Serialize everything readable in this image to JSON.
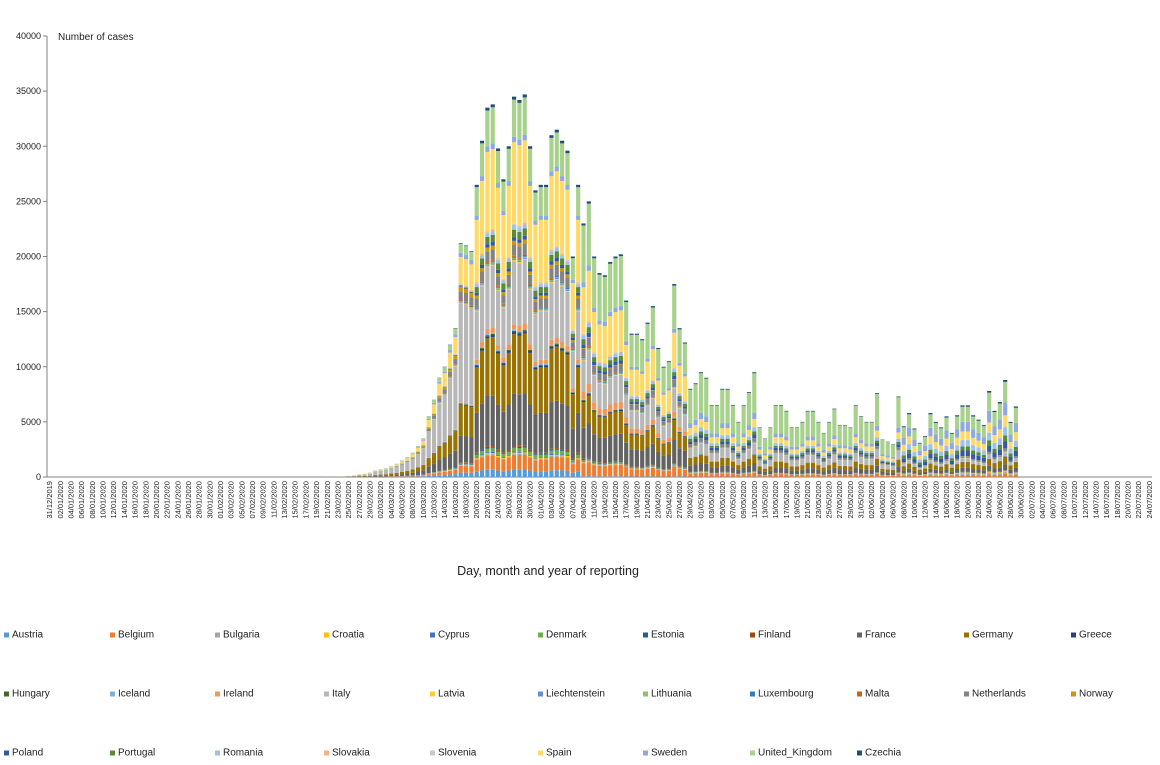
{
  "chart_data": {
    "type": "bar",
    "stacked": true,
    "ylabel": "Number of cases",
    "xlabel": "Day, month and year of reporting",
    "ylim": [
      0,
      40000
    ],
    "yticks": [
      0,
      5000,
      10000,
      15000,
      20000,
      25000,
      30000,
      35000,
      40000
    ],
    "start_date": "2019-12-31",
    "x_tick_labels": [
      "31/12/2019",
      "02/01/2020",
      "04/01/2020",
      "06/01/2020",
      "08/01/2020",
      "10/01/2020",
      "12/01/2020",
      "14/01/2020",
      "16/01/2020",
      "18/01/2020",
      "20/01/2020",
      "22/01/2020",
      "24/01/2020",
      "26/01/2020",
      "28/01/2020",
      "30/01/2020",
      "01/02/2020",
      "03/02/2020",
      "05/02/2020",
      "07/02/2020",
      "09/02/2020",
      "11/02/2020",
      "13/02/2020",
      "15/02/2020",
      "17/02/2020",
      "19/02/2020",
      "21/02/2020",
      "23/02/2020",
      "25/02/2020",
      "27/02/2020",
      "29/02/2020",
      "02/03/2020",
      "04/03/2020",
      "06/03/2020",
      "08/03/2020",
      "10/03/2020",
      "12/03/2020",
      "14/03/2020",
      "16/03/2020",
      "18/03/2020",
      "20/03/2020",
      "22/03/2020",
      "24/03/2020",
      "26/03/2020",
      "28/03/2020",
      "30/03/2020",
      "01/04/2020",
      "03/04/2020",
      "05/04/2020",
      "07/04/2020",
      "09/04/2020",
      "11/04/2020",
      "13/04/2020",
      "15/04/2020",
      "17/04/2020",
      "19/04/2020",
      "21/04/2020",
      "23/04/2020",
      "25/04/2020",
      "27/04/2020",
      "29/04/2020",
      "01/05/2020",
      "03/05/2020",
      "05/05/2020",
      "07/05/2020",
      "09/05/2020",
      "11/05/2020",
      "13/05/2020",
      "15/05/2020",
      "17/05/2020",
      "19/05/2020",
      "21/05/2020",
      "23/05/2020",
      "25/05/2020",
      "27/05/2020",
      "29/05/2020",
      "31/05/2020",
      "02/06/2020",
      "04/06/2020",
      "06/06/2020",
      "08/06/2020",
      "10/06/2020",
      "12/06/2020",
      "14/06/2020",
      "16/06/2020",
      "18/06/2020",
      "20/06/2020",
      "22/06/2020",
      "24/06/2020",
      "26/06/2020",
      "28/06/2020",
      "30/06/2020",
      "02/07/2020",
      "04/07/2020",
      "06/07/2020",
      "08/07/2020",
      "10/07/2020",
      "12/07/2020",
      "14/07/2020",
      "16/07/2020",
      "18/07/2020",
      "20/07/2020",
      "22/07/2020",
      "24/07/2020"
    ],
    "daily_totals_start_2020_02_21": [
      20,
      15,
      30,
      60,
      100,
      150,
      250,
      300,
      400,
      600,
      700,
      800,
      1000,
      1200,
      1500,
      1800,
      2200,
      2800,
      3500,
      5500,
      7000,
      9000,
      10000,
      12000,
      13500,
      21200,
      21000,
      20500,
      26500,
      30500,
      33500,
      33800,
      29800,
      27000,
      30000,
      34500,
      34200,
      34700,
      30000,
      26000,
      26500,
      26500,
      31000,
      31500,
      30500,
      29600,
      20000,
      26500,
      23000,
      25000,
      20000,
      18500,
      18300,
      19500,
      20000,
      20200,
      16000,
      13000,
      13000,
      12500,
      14000,
      15500,
      11700,
      10000,
      10500,
      17500,
      13500,
      12200,
      8000,
      8500,
      9500,
      9000,
      6500,
      6500,
      8000,
      8000,
      6500,
      5000,
      6500,
      7700,
      9500,
      4500,
      3500,
      4500,
      6500,
      6500,
      6000,
      4500,
      4500,
      5000,
      6000,
      6000,
      5000,
      4000,
      5000,
      6200,
      4700,
      4700,
      4500,
      6500,
      5500,
      5000,
      5000,
      7600,
      3400,
      3200,
      3000,
      7300,
      4600,
      5800,
      4400,
      3100,
      3700,
      5800,
      5000,
      4500,
      5500,
      4000,
      5600,
      6500,
      6500,
      5600,
      5200,
      4700,
      7800,
      6000,
      6800,
      8800,
      5000,
      6400
    ],
    "series": [
      {
        "name": "Austria",
        "color": "#5b9bd5"
      },
      {
        "name": "Belgium",
        "color": "#ed7d31"
      },
      {
        "name": "Bulgaria",
        "color": "#a5a5a5"
      },
      {
        "name": "Croatia",
        "color": "#ffc000"
      },
      {
        "name": "Cyprus",
        "color": "#4472c4"
      },
      {
        "name": "Denmark",
        "color": "#70ad47"
      },
      {
        "name": "Estonia",
        "color": "#255e91"
      },
      {
        "name": "Finland",
        "color": "#9e480e"
      },
      {
        "name": "France",
        "color": "#636363"
      },
      {
        "name": "Germany",
        "color": "#997300"
      },
      {
        "name": "Greece",
        "color": "#264478"
      },
      {
        "name": "Hungary",
        "color": "#43682b"
      },
      {
        "name": "Iceland",
        "color": "#7cafdd"
      },
      {
        "name": "Ireland",
        "color": "#f1975a"
      },
      {
        "name": "Italy",
        "color": "#b7b7b7"
      },
      {
        "name": "Latvia",
        "color": "#ffcd33"
      },
      {
        "name": "Liechtenstein",
        "color": "#698ed0"
      },
      {
        "name": "Lithuania",
        "color": "#8cc168"
      },
      {
        "name": "Luxembourg",
        "color": "#327dc2"
      },
      {
        "name": "Malta",
        "color": "#d26012"
      },
      {
        "name": "Netherlands",
        "color": "#848484"
      },
      {
        "name": "Norway",
        "color": "#cc9a00"
      },
      {
        "name": "Poland",
        "color": "#335aa1"
      },
      {
        "name": "Portugal",
        "color": "#5a8a39"
      },
      {
        "name": "Romania",
        "color": "#9dc3e6"
      },
      {
        "name": "Slovakia",
        "color": "#f4b183"
      },
      {
        "name": "Slovenia",
        "color": "#c9c9c9"
      },
      {
        "name": "Spain",
        "color": "#ffd966"
      },
      {
        "name": "Sweden",
        "color": "#8faadc"
      },
      {
        "name": "United_Kingdom",
        "color": "#a9d18e"
      },
      {
        "name": "Czechia",
        "color": "#1f4e79"
      }
    ]
  }
}
